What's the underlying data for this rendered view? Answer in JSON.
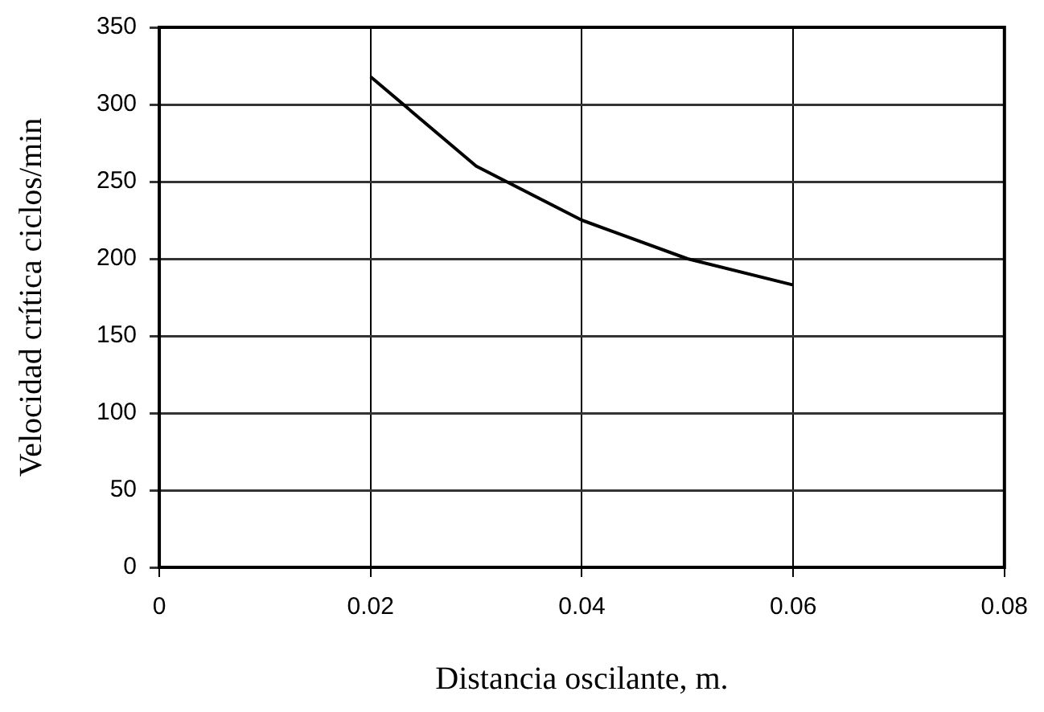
{
  "chart_data": {
    "type": "line",
    "xlabel": "Distancia oscilante, m.",
    "ylabel": "Velocidad crítica ciclos/min",
    "x": [
      0.02,
      0.03,
      0.04,
      0.05,
      0.06
    ],
    "series": [
      {
        "color": "#000000",
        "values": [
          318,
          260,
          225,
          200,
          183
        ]
      }
    ],
    "xlim": [
      0,
      0.08
    ],
    "xticks": [
      0,
      0.02,
      0.04,
      0.06,
      0.08
    ],
    "ylim": [
      0,
      350
    ],
    "yticks": [
      0,
      50,
      100,
      150,
      200,
      250,
      300,
      350
    ],
    "grid": true,
    "legend": false,
    "marker": "none",
    "line_style": "solid"
  }
}
